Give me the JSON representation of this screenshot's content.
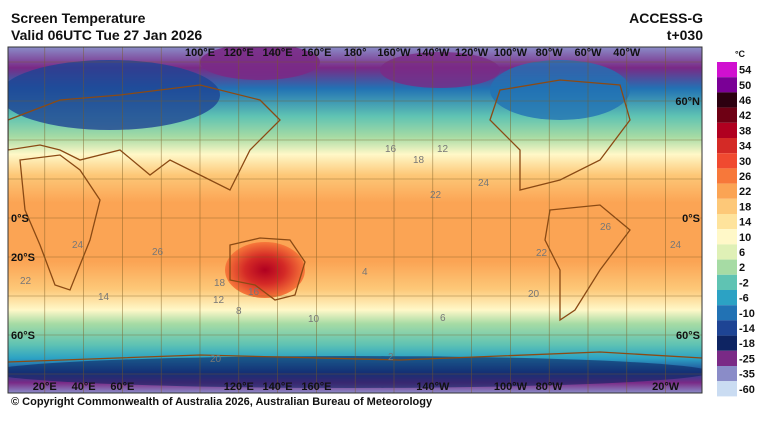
{
  "header": {
    "title": "Screen Temperature",
    "valid": "Valid 06UTC Tue 27 Jan 2026",
    "model": "ACCESS-G",
    "lead": "t+030"
  },
  "map": {
    "top_lon_labels": [
      "100°E",
      "120°E",
      "140°E",
      "160°E",
      "180°",
      "160°W",
      "140°W",
      "120°W",
      "100°W",
      "80°W",
      "60°W",
      "40°W"
    ],
    "bottom_lon_labels": [
      "20°E",
      "40°E",
      "60°E",
      "120°E",
      "140°E",
      "160°E",
      "140°W",
      "100°W",
      "80°W",
      "20°W"
    ],
    "left_lat_labels": [
      "0°S",
      "20°S",
      "60°S"
    ],
    "right_lat_labels": [
      "60°N",
      "0°S",
      "60°S"
    ],
    "contour_labels": [
      "16",
      "18",
      "12",
      "24",
      "26",
      "24",
      "22",
      "22",
      "18",
      "16",
      "12",
      "20",
      "14",
      "10",
      "6",
      "8",
      "2",
      "20",
      "24",
      "26",
      "22",
      "4"
    ]
  },
  "colorbar": {
    "unit": "°C",
    "levels": [
      {
        "value": 54,
        "color": "#d010d0"
      },
      {
        "value": 50,
        "color": "#7a0096"
      },
      {
        "value": 46,
        "color": "#2c0010"
      },
      {
        "value": 42,
        "color": "#6e0014"
      },
      {
        "value": 38,
        "color": "#b00020"
      },
      {
        "value": 34,
        "color": "#d42a26"
      },
      {
        "value": 30,
        "color": "#f04a30"
      },
      {
        "value": 26,
        "color": "#f7783a"
      },
      {
        "value": 22,
        "color": "#fba454"
      },
      {
        "value": 18,
        "color": "#fdc878"
      },
      {
        "value": 14,
        "color": "#fee39c"
      },
      {
        "value": 10,
        "color": "#fff8c8"
      },
      {
        "value": 6,
        "color": "#dff0b6"
      },
      {
        "value": 2,
        "color": "#a6dba4"
      },
      {
        "value": -2,
        "color": "#5fc3b3"
      },
      {
        "value": -6,
        "color": "#2ca2c4"
      },
      {
        "value": -10,
        "color": "#2272b4"
      },
      {
        "value": -14,
        "color": "#1e4494"
      },
      {
        "value": -18,
        "color": "#0e2462"
      },
      {
        "value": -25,
        "color": "#7a2a86"
      },
      {
        "value": -35,
        "color": "#8a8cc8"
      },
      {
        "value": -60,
        "color": "#cadcf2"
      }
    ]
  },
  "footer": {
    "copyright": "© Copyright Commonwealth of Australia 2026, Australian Bureau of Meteorology"
  }
}
